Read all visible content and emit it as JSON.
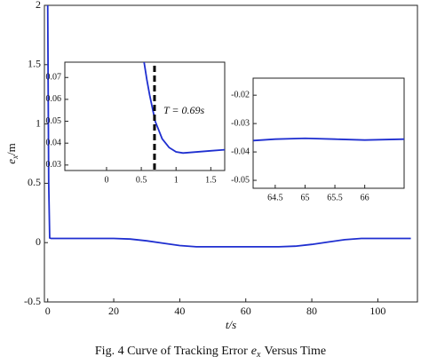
{
  "chart_data": [
    {
      "type": "line",
      "xlim": [
        -1,
        112
      ],
      "ylim": [
        -0.5,
        2
      ],
      "xticks": [
        0,
        20,
        40,
        60,
        80,
        100
      ],
      "yticks": [
        -0.5,
        0,
        0.5,
        1,
        1.5,
        2
      ],
      "y_label": {
        "symbol": "e",
        "subscript": "x",
        "unit": "/m"
      },
      "x_label": "t/s",
      "caption": {
        "text": "Fig. 4 Curve of Tracking Error",
        "symbol": "e",
        "subscript": "x",
        "rest": "Versus Time"
      },
      "series": [
        {
          "color": "#1f2fd0",
          "x": [
            0,
            0.3,
            0.6,
            1,
            5,
            10,
            20,
            25,
            30,
            35,
            40,
            45,
            50,
            55,
            60,
            65,
            70,
            75,
            80,
            85,
            90,
            95,
            100,
            105,
            110
          ],
          "values": [
            2,
            0.5,
            0.04,
            0.035,
            0.035,
            0.035,
            0.035,
            0.03,
            0.015,
            -0.005,
            -0.025,
            -0.035,
            -0.035,
            -0.035,
            -0.035,
            -0.035,
            -0.035,
            -0.03,
            -0.015,
            0.005,
            0.025,
            0.035,
            0.035,
            0.035,
            0.035
          ]
        }
      ]
    },
    {
      "type": "line",
      "xlim": [
        -0.6,
        1.7
      ],
      "ylim": [
        0.0275,
        0.077
      ],
      "xticks": [
        0,
        0.5,
        1,
        1.5
      ],
      "yticks": [
        0.03,
        0.04,
        0.05,
        0.06,
        0.07
      ],
      "marker_x": 0.69,
      "annotation": "T = 0.69s",
      "series": [
        {
          "color": "#1f2fd0",
          "x": [
            0.54,
            0.58,
            0.62,
            0.66,
            0.7,
            0.8,
            0.9,
            1.0,
            1.1,
            1.3,
            1.5,
            1.7
          ],
          "values": [
            0.077,
            0.069,
            0.062,
            0.056,
            0.05,
            0.042,
            0.038,
            0.036,
            0.0355,
            0.036,
            0.0365,
            0.037
          ]
        }
      ]
    },
    {
      "type": "line",
      "xlim": [
        64.13,
        66.66
      ],
      "ylim": [
        -0.0528,
        -0.014
      ],
      "xticks": [
        64.5,
        65,
        65.5,
        66
      ],
      "yticks": [
        -0.05,
        -0.04,
        -0.03,
        -0.02
      ],
      "series": [
        {
          "color": "#1f2fd0",
          "x": [
            64.13,
            64.5,
            65,
            65.5,
            66,
            66.66
          ],
          "values": [
            -0.036,
            -0.0355,
            -0.0352,
            -0.0355,
            -0.0358,
            -0.0355
          ]
        }
      ]
    }
  ]
}
